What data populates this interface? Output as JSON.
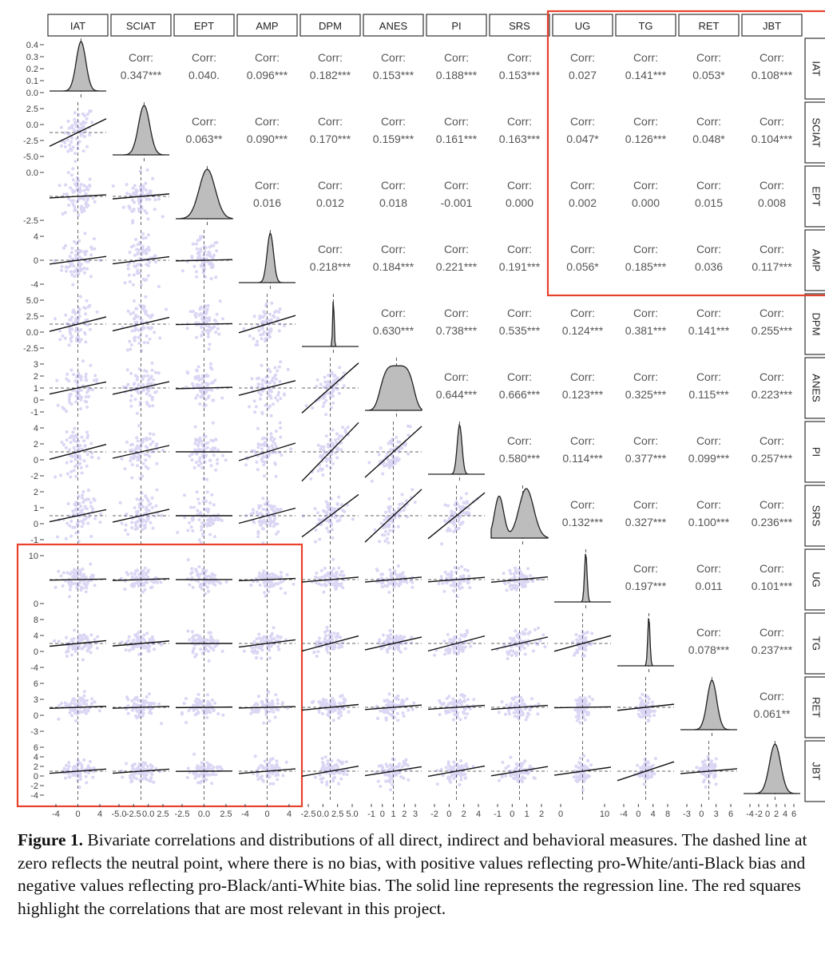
{
  "figure": {
    "caption_label": "Figure 1.",
    "caption_text": "Bivariate correlations and distributions of all direct, indirect and behavioral measures. The dashed line at zero reflects the neutral point, where there is no bias, with positive values reflecting pro-White/anti-Black bias and negative values reflecting pro-Black/anti-White bias. The solid line represents the regression line. The red squares highlight the correlations that are most relevant in this project."
  },
  "colors": {
    "points": "#7b6cd6",
    "density_fill": "#bdbdbd",
    "highlight": "#e8412c",
    "text": "#555555",
    "strip_border": "#333333"
  },
  "chart_data": {
    "type": "scatter",
    "title": "",
    "variables": [
      "IAT",
      "SCIAT",
      "EPT",
      "AMP",
      "DPM",
      "ANES",
      "PI",
      "SRS",
      "UG",
      "TG",
      "RET",
      "JBT"
    ],
    "corr_label": "Corr:",
    "correlations": [
      [
        "IAT",
        "SCIAT",
        "0.347***"
      ],
      [
        "IAT",
        "EPT",
        "0.040."
      ],
      [
        "IAT",
        "AMP",
        "0.096***"
      ],
      [
        "IAT",
        "DPM",
        "0.182***"
      ],
      [
        "IAT",
        "ANES",
        "0.153***"
      ],
      [
        "IAT",
        "PI",
        "0.188***"
      ],
      [
        "IAT",
        "SRS",
        "0.153***"
      ],
      [
        "IAT",
        "UG",
        "0.027"
      ],
      [
        "IAT",
        "TG",
        "0.141***"
      ],
      [
        "IAT",
        "RET",
        "0.053*"
      ],
      [
        "IAT",
        "JBT",
        "0.108***"
      ],
      [
        "SCIAT",
        "EPT",
        "0.063**"
      ],
      [
        "SCIAT",
        "AMP",
        "0.090***"
      ],
      [
        "SCIAT",
        "DPM",
        "0.170***"
      ],
      [
        "SCIAT",
        "ANES",
        "0.159***"
      ],
      [
        "SCIAT",
        "PI",
        "0.161***"
      ],
      [
        "SCIAT",
        "SRS",
        "0.163***"
      ],
      [
        "SCIAT",
        "UG",
        "0.047*"
      ],
      [
        "SCIAT",
        "TG",
        "0.126***"
      ],
      [
        "SCIAT",
        "RET",
        "0.048*"
      ],
      [
        "SCIAT",
        "JBT",
        "0.104***"
      ],
      [
        "EPT",
        "AMP",
        "0.016"
      ],
      [
        "EPT",
        "DPM",
        "0.012"
      ],
      [
        "EPT",
        "ANES",
        "0.018"
      ],
      [
        "EPT",
        "PI",
        "-0.001"
      ],
      [
        "EPT",
        "SRS",
        "0.000"
      ],
      [
        "EPT",
        "UG",
        "0.002"
      ],
      [
        "EPT",
        "TG",
        "0.000"
      ],
      [
        "EPT",
        "RET",
        "0.015"
      ],
      [
        "EPT",
        "JBT",
        "0.008"
      ],
      [
        "AMP",
        "DPM",
        "0.218***"
      ],
      [
        "AMP",
        "ANES",
        "0.184***"
      ],
      [
        "AMP",
        "PI",
        "0.221***"
      ],
      [
        "AMP",
        "SRS",
        "0.191***"
      ],
      [
        "AMP",
        "UG",
        "0.056*"
      ],
      [
        "AMP",
        "TG",
        "0.185***"
      ],
      [
        "AMP",
        "RET",
        "0.036"
      ],
      [
        "AMP",
        "JBT",
        "0.117***"
      ],
      [
        "DPM",
        "ANES",
        "0.630***"
      ],
      [
        "DPM",
        "PI",
        "0.738***"
      ],
      [
        "DPM",
        "SRS",
        "0.535***"
      ],
      [
        "DPM",
        "UG",
        "0.124***"
      ],
      [
        "DPM",
        "TG",
        "0.381***"
      ],
      [
        "DPM",
        "RET",
        "0.141***"
      ],
      [
        "DPM",
        "JBT",
        "0.255***"
      ],
      [
        "ANES",
        "PI",
        "0.644***"
      ],
      [
        "ANES",
        "SRS",
        "0.666***"
      ],
      [
        "ANES",
        "UG",
        "0.123***"
      ],
      [
        "ANES",
        "TG",
        "0.325***"
      ],
      [
        "ANES",
        "RET",
        "0.115***"
      ],
      [
        "ANES",
        "JBT",
        "0.223***"
      ],
      [
        "PI",
        "SRS",
        "0.580***"
      ],
      [
        "PI",
        "UG",
        "0.114***"
      ],
      [
        "PI",
        "TG",
        "0.377***"
      ],
      [
        "PI",
        "RET",
        "0.099***"
      ],
      [
        "PI",
        "JBT",
        "0.257***"
      ],
      [
        "SRS",
        "UG",
        "0.132***"
      ],
      [
        "SRS",
        "TG",
        "0.327***"
      ],
      [
        "SRS",
        "RET",
        "0.100***"
      ],
      [
        "SRS",
        "JBT",
        "0.236***"
      ],
      [
        "UG",
        "TG",
        "0.197***"
      ],
      [
        "UG",
        "RET",
        "0.011"
      ],
      [
        "UG",
        "JBT",
        "0.101***"
      ],
      [
        "TG",
        "RET",
        "0.078***"
      ],
      [
        "TG",
        "JBT",
        "0.237***"
      ],
      [
        "RET",
        "JBT",
        "0.061**"
      ]
    ],
    "y_ticks": {
      "IAT": [
        "0.4",
        "0.3",
        "0.2",
        "0.1",
        "0.0"
      ],
      "SCIAT": [
        "2.5",
        "0.0",
        "-2.5",
        "-5.0"
      ],
      "EPT": [
        "0.0",
        "-2.5"
      ],
      "AMP": [
        "4",
        "0",
        "-4"
      ],
      "DPM": [
        "5.0",
        "2.5",
        "0.0",
        "-2.5"
      ],
      "ANES": [
        "3",
        "2",
        "1",
        "0",
        "-1"
      ],
      "PI": [
        "4",
        "2",
        "0",
        "-2"
      ],
      "SRS": [
        "2",
        "1",
        "0",
        "-1"
      ],
      "UG": [
        "10",
        "0"
      ],
      "TG": [
        "8",
        "4",
        "0",
        "-4"
      ],
      "RET": [
        "6",
        "3",
        "0",
        "-3"
      ],
      "JBT": [
        "6",
        "4",
        "2",
        "0",
        "-2",
        "-4"
      ]
    },
    "x_ticks": {
      "IAT": [
        "-4",
        "0",
        "4"
      ],
      "SCIAT": [
        "-5.0",
        "-2.5",
        "0.0",
        "2.5"
      ],
      "EPT": [
        "-2.5",
        "0.0",
        "2.5"
      ],
      "AMP": [
        "-4",
        "0",
        "4"
      ],
      "DPM": [
        "-2.5",
        "0.0",
        "2.5",
        "5.0"
      ],
      "ANES": [
        "-1",
        "0",
        "1",
        "2",
        "3"
      ],
      "PI": [
        "-2",
        "0",
        "2",
        "4"
      ],
      "SRS": [
        "-1",
        "0",
        "1",
        "2"
      ],
      "UG": [
        "0",
        "10"
      ],
      "TG": [
        "-4",
        "0",
        "4",
        "8"
      ],
      "RET": [
        "-3",
        "0",
        "3",
        "6"
      ],
      "JBT": [
        "-4",
        "-2",
        "0",
        "2",
        "4",
        "6"
      ]
    },
    "highlights": [
      {
        "name": "direct-vs-behavioral",
        "rows": [
          "IAT",
          "SCIAT",
          "EPT",
          "AMP"
        ],
        "cols": [
          "UG",
          "TG",
          "RET",
          "JBT"
        ]
      },
      {
        "name": "behavioral-vs-direct",
        "rows": [
          "UG",
          "TG",
          "RET",
          "JBT"
        ],
        "cols": [
          "IAT",
          "SCIAT",
          "EPT",
          "AMP"
        ]
      }
    ]
  }
}
